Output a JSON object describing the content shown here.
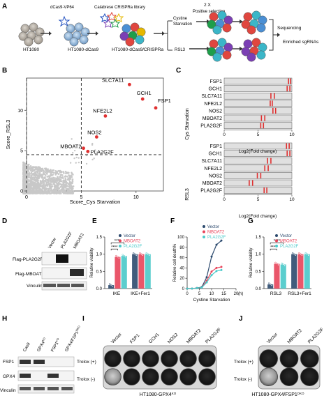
{
  "panels": {
    "A": "A",
    "B": "B",
    "C": "C",
    "D": "D",
    "E": "E",
    "F": "F",
    "G": "G",
    "H": "H",
    "I": "I",
    "J": "J"
  },
  "panel_a": {
    "cell_line": "HT1080",
    "vector_label": "dCas9-VP64",
    "library_label": "Calabrese CRISPRa library",
    "dcas9_line": "HT1080-dCas9",
    "crispra_line": "HT1080-dCas9/CRISPRa",
    "selection_label": "2 X",
    "selection_sub": "Positive selection",
    "cystine_label": "Cystine\nStarvation",
    "rsl3_label": "RSL3",
    "sequencing_label": "Sequencing",
    "enriched_label": "Enriched sgRNAs"
  },
  "chart_data": [
    {
      "panel": "B",
      "type": "scatter",
      "xlabel": "Score_Cys Starvation",
      "ylabel": "Score_RSL3",
      "xlim": [
        0,
        12.5
      ],
      "ylim": [
        0,
        14
      ],
      "xticks": [
        0,
        5,
        10
      ],
      "yticks": [
        0,
        5,
        10
      ],
      "thresholds": {
        "x": [
          0,
          5
        ],
        "y": 4.5
      },
      "highlighted": [
        {
          "label": "SLC7A11",
          "x": 9.4,
          "y": 13.2
        },
        {
          "label": "GCH1",
          "x": 10.6,
          "y": 11.4
        },
        {
          "label": "FSP1",
          "x": 11.8,
          "y": 10.3
        },
        {
          "label": "NFE2L2",
          "x": 7.2,
          "y": 9.3
        },
        {
          "label": "NOS2",
          "x": 6.4,
          "y": 6.7
        },
        {
          "label": "MBOAT2",
          "x": 5.2,
          "y": 5.3
        },
        {
          "label": "PLA2G2F",
          "x": 5.6,
          "y": 4.9
        }
      ]
    },
    {
      "panel": "C",
      "type": "barcode",
      "xlabel": "Log2(Fold change)",
      "xlim": [
        0,
        10
      ],
      "xticks": [
        0,
        5,
        10
      ],
      "genes": [
        "FSP1",
        "GCH1",
        "SLC7A11",
        "NFE2L2",
        "NOS2",
        "MBOAT2",
        "PLA2G2F"
      ],
      "groups": [
        {
          "name": "Cys Starvation",
          "marks": [
            [
              9.5,
              9.8
            ],
            [
              9.3,
              9.7
            ],
            [
              6.9,
              7.4
            ],
            [
              6.8,
              7.1
            ],
            [
              7.2,
              7.6
            ],
            [
              5.5,
              6.0
            ],
            [
              5.4,
              5.8
            ]
          ]
        },
        {
          "name": "RSL3",
          "marks": [
            [
              9.2,
              9.6
            ],
            [
              9.3,
              9.7
            ],
            [
              6.4,
              6.9
            ],
            [
              6.0,
              6.5
            ],
            [
              4.9,
              5.4
            ],
            [
              3.7,
              4.2
            ],
            [
              5.9,
              6.3
            ]
          ]
        }
      ]
    },
    {
      "panel": "E",
      "type": "bar",
      "ylabel": "Relative viability",
      "ylim": [
        0,
        1.5
      ],
      "yticks": [
        0,
        0.5,
        1.0,
        1.5
      ],
      "categories": [
        "IKE",
        "IKE+Fer1"
      ],
      "series": [
        {
          "name": "Vector",
          "values": [
            0.1,
            1.0
          ]
        },
        {
          "name": "MBOAT2",
          "values": [
            0.92,
            1.0
          ]
        },
        {
          "name": "PLA2G2F",
          "values": [
            0.95,
            1.0
          ]
        }
      ],
      "significance": [
        "****",
        "****"
      ]
    },
    {
      "panel": "F",
      "type": "line",
      "xlabel": "Cystine Starvation",
      "ylabel": "Relative cell death%",
      "x_unit": "(h)",
      "x": [
        0,
        2,
        4,
        6,
        8,
        10,
        12,
        14
      ],
      "xticks": [
        0,
        5,
        10,
        15,
        20
      ],
      "ylim": [
        0,
        100
      ],
      "yticks": [
        0,
        20,
        40,
        60,
        80,
        100
      ],
      "series": [
        {
          "name": "Vector",
          "values": [
            0,
            0,
            1,
            3,
            22,
            62,
            85,
            93
          ]
        },
        {
          "name": "MBOAT2",
          "values": [
            0,
            0,
            1,
            2,
            15,
            33,
            40,
            42
          ]
        },
        {
          "name": "PLA2G2F",
          "values": [
            0,
            0,
            1,
            2,
            12,
            26,
            34,
            36
          ]
        }
      ]
    },
    {
      "panel": "G",
      "type": "bar",
      "ylabel": "Relative viability",
      "ylim": [
        0,
        1.5
      ],
      "yticks": [
        0,
        0.5,
        1.0,
        1.5
      ],
      "categories": [
        "RSL3",
        "RSL3+Fer1"
      ],
      "series": [
        {
          "name": "Vector",
          "values": [
            0.12,
            1.0
          ]
        },
        {
          "name": "MBOAT2",
          "values": [
            0.72,
            1.0
          ]
        },
        {
          "name": "PLA2G2F",
          "values": [
            0.7,
            1.0
          ]
        }
      ],
      "significance": [
        "****",
        "****"
      ]
    }
  ],
  "legend": [
    "Vector",
    "MBOAT2",
    "PLA2G2F"
  ],
  "colors": {
    "vector": "#2c4a6e",
    "mboat2": "#e8445a",
    "pla2g2f": "#49c9c9",
    "highlight": "#e03030",
    "scatter_grey": "#c8c8c8",
    "barcode_bar": "#e0e0e0"
  },
  "panel_d": {
    "lanes": [
      "Vector",
      "PLA2G2F",
      "MBOAT2"
    ],
    "rows": [
      "Flag-PLA2G2F",
      "Flag-MBOAT2",
      "Vinculin"
    ]
  },
  "panel_h": {
    "lanes": [
      "Cas9",
      "GPX4KO",
      "FSP1KO",
      "GPX4/FSP1DKO"
    ],
    "rows": [
      "FSP1",
      "GPX4",
      "Vinculin"
    ]
  },
  "panel_i": {
    "columns": [
      "Vector",
      "FSP1",
      "GCH1",
      "NOS2",
      "MBOAT2",
      "PLA2G2F"
    ],
    "rows": [
      "Trolox (+)",
      "Trolox (-)"
    ],
    "caption": "HT1080-GPX4KO"
  },
  "panel_j": {
    "columns": [
      "Vector",
      "MBOAT2",
      "PLA2G2F"
    ],
    "rows": [
      "Trolox (+)",
      "Trolox (-)"
    ],
    "caption": "HT1080-GPX4/FSP1DKO"
  }
}
